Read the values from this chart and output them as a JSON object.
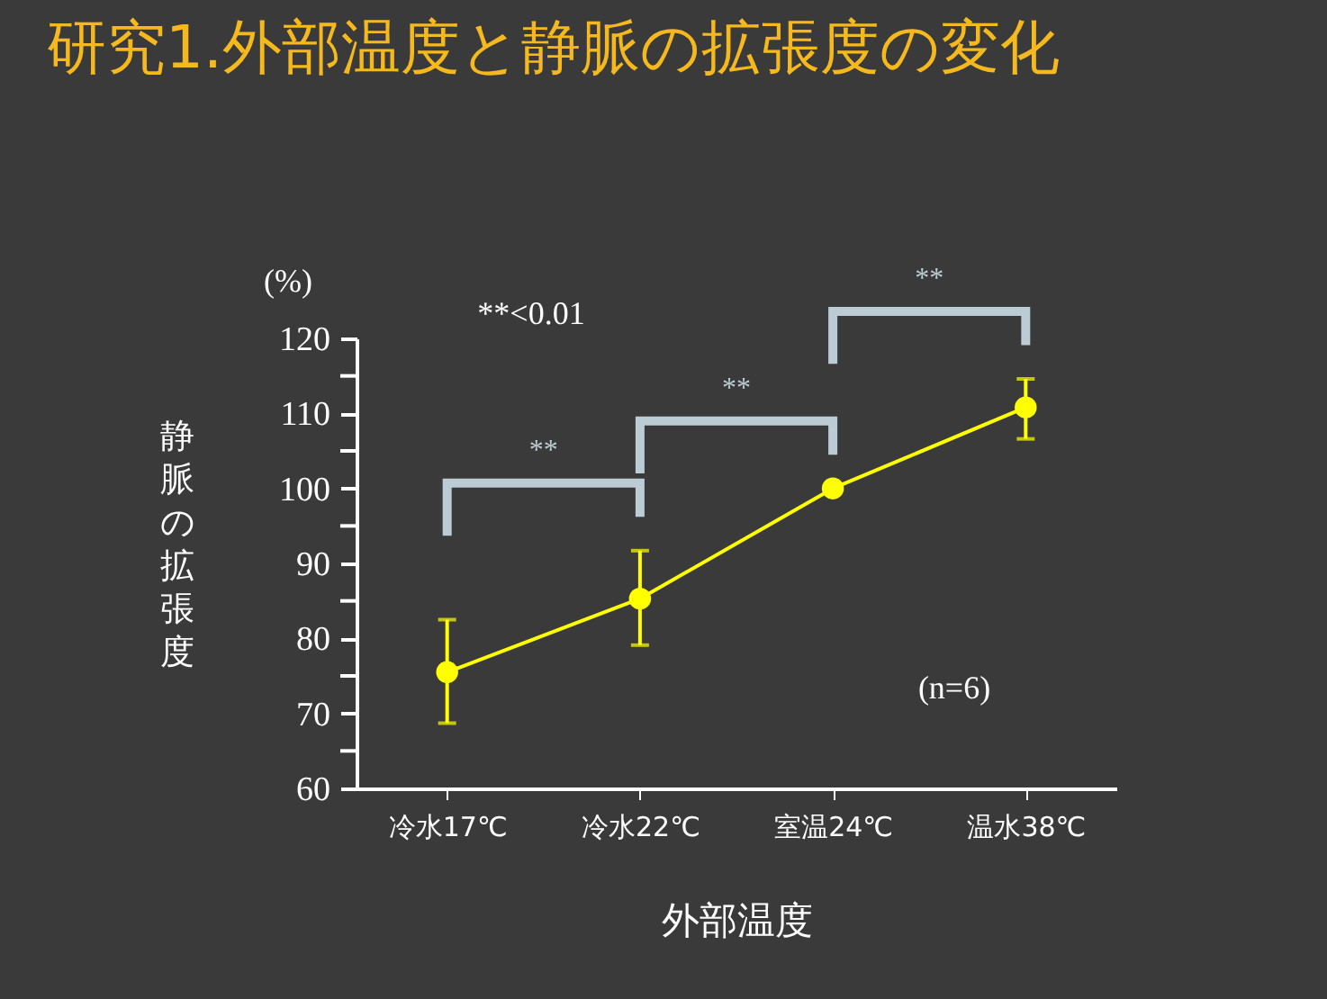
{
  "chart_data": {
    "type": "line",
    "title": "研究1.外部温度と静脈の拡張度の変化",
    "xlabel": "外部温度",
    "ylabel": "静脈の拡張度",
    "categories": [
      "冷水17℃",
      "冷水22℃",
      "室温24℃",
      "温水38℃"
    ],
    "series": [
      {
        "color": "#ffff00",
        "values": [
          75.5,
          85.3,
          100,
          110.8
        ],
        "errors": [
          [
            68.7,
            82.5
          ],
          [
            79.1,
            91.7
          ],
          null,
          [
            106.6,
            114.6
          ]
        ]
      }
    ],
    "ylim": [
      60,
      120
    ],
    "yticks": [
      60,
      {
        "value": 65,
        "label": null
      },
      70,
      {
        "value": 75,
        "label": null
      },
      80,
      {
        "value": 85,
        "label": null
      },
      90,
      {
        "value": 95,
        "label": null
      },
      100,
      {
        "value": 105,
        "label": null
      },
      110,
      {
        "value": 115,
        "label": null
      },
      120
    ],
    "grid": false,
    "marker": "circle",
    "annotations": [
      "(%)",
      "**<0.01",
      "(n=6)",
      "**",
      "**",
      "**"
    ]
  }
}
